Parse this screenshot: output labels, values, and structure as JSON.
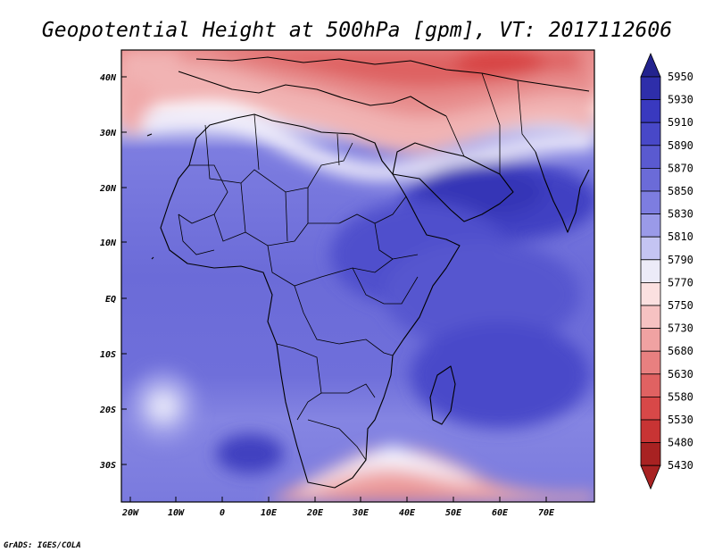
{
  "map": {
    "title": "Geopotential Height at 500hPa [gpm], VT: 2017112606",
    "lat_labels": [
      "40N",
      "30N",
      "20N",
      "10N",
      "EQ",
      "10S",
      "20S",
      "30S"
    ],
    "lon_labels": [
      "20W",
      "10W",
      "0",
      "10E",
      "20E",
      "30E",
      "40E",
      "50E",
      "60E",
      "70E"
    ],
    "credit": "GrADS: IGES/COLA",
    "colorbar": {
      "levels": [
        "5950",
        "5930",
        "5910",
        "5890",
        "5870",
        "5850",
        "5830",
        "5810",
        "5790",
        "5770",
        "5750",
        "5730",
        "5680",
        "5630",
        "5580",
        "5530",
        "5480",
        "5430"
      ],
      "colors": [
        "#23238e",
        "#2e2eaa",
        "#3939bf",
        "#4848c8",
        "#5a5ad0",
        "#6b6bd8",
        "#7d7de0",
        "#9a9ae8",
        "#c4c4f2",
        "#ecebf8",
        "#fbe0e0",
        "#f6c2c2",
        "#f0a2a2",
        "#e88080",
        "#e06262",
        "#d84848",
        "#c83434",
        "#a82222"
      ]
    }
  }
}
